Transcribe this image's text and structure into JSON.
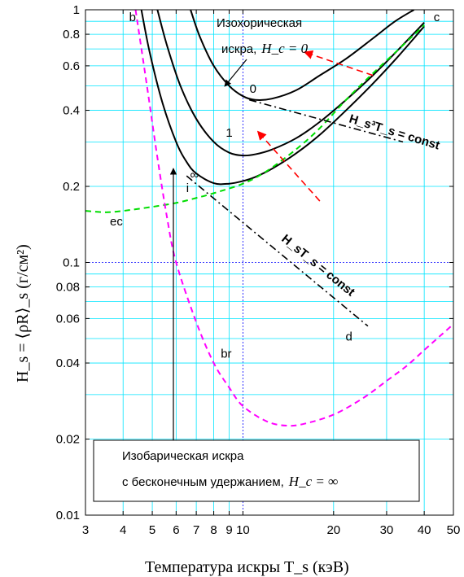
{
  "chart_data": {
    "type": "line",
    "title": "",
    "xlabel": "Температура искры T_s (кэВ)",
    "ylabel": "H_s = ⟨ρR⟩_s (г/см²)",
    "xscale": "log",
    "yscale": "log",
    "xlim": [
      3,
      50
    ],
    "ylim": [
      0.01,
      1
    ],
    "xticks": [
      {
        "v": 3,
        "label": "3"
      },
      {
        "v": 4,
        "label": "4"
      },
      {
        "v": 5,
        "label": "5"
      },
      {
        "v": 6,
        "label": "6"
      },
      {
        "v": 7,
        "label": "7"
      },
      {
        "v": 8,
        "label": "8"
      },
      {
        "v": 9,
        "label": "9"
      },
      {
        "v": 10,
        "label": "10"
      },
      {
        "v": 20,
        "label": "20"
      },
      {
        "v": 30,
        "label": "30"
      },
      {
        "v": 40,
        "label": "40"
      },
      {
        "v": 50,
        "label": "50"
      }
    ],
    "yticks": [
      {
        "v": 0.01,
        "label": "0.01"
      },
      {
        "v": 0.02,
        "label": "0.02"
      },
      {
        "v": 0.04,
        "label": "0.04"
      },
      {
        "v": 0.06,
        "label": "0.06"
      },
      {
        "v": 0.08,
        "label": "0.08"
      },
      {
        "v": 0.1,
        "label": "0.1"
      },
      {
        "v": 0.2,
        "label": "0.2"
      },
      {
        "v": 0.4,
        "label": "0.4"
      },
      {
        "v": 0.6,
        "label": "0.6"
      },
      {
        "v": 0.8,
        "label": "0.8"
      },
      {
        "v": 1,
        "label": "1"
      }
    ],
    "grid": true,
    "series": [
      {
        "name": "0",
        "color": "#000000",
        "style": "solid",
        "x": [
          6.7,
          7.2,
          8,
          9,
          10,
          11,
          12.5,
          15,
          18,
          22,
          27,
          32,
          37
        ],
        "y": [
          1.0,
          0.78,
          0.6,
          0.5,
          0.455,
          0.44,
          0.445,
          0.48,
          0.55,
          0.64,
          0.77,
          0.9,
          1.0
        ]
      },
      {
        "name": "1",
        "color": "#000000",
        "style": "solid",
        "x": [
          5.2,
          5.6,
          6.2,
          7,
          8,
          9,
          10,
          11,
          12.5,
          15,
          18,
          22,
          27,
          33,
          40
        ],
        "y": [
          1.0,
          0.72,
          0.5,
          0.37,
          0.3,
          0.272,
          0.265,
          0.268,
          0.28,
          0.31,
          0.36,
          0.44,
          0.55,
          0.7,
          0.89
        ]
      },
      {
        "name": "∞",
        "color": "#000000",
        "style": "solid",
        "x": [
          4.6,
          4.9,
          5.4,
          6,
          6.5,
          7,
          8,
          9,
          10,
          11,
          12.5,
          15,
          18,
          22,
          27,
          33,
          40
        ],
        "y": [
          1.0,
          0.68,
          0.43,
          0.3,
          0.25,
          0.225,
          0.206,
          0.205,
          0.21,
          0.218,
          0.235,
          0.27,
          0.32,
          0.4,
          0.51,
          0.66,
          0.86
        ]
      },
      {
        "name": "ec",
        "color": "#00dd00",
        "style": "dashed",
        "x": [
          3,
          3.5,
          4,
          5,
          6,
          7,
          8,
          10,
          12,
          15,
          18,
          22,
          27,
          33,
          40
        ],
        "y": [
          0.16,
          0.158,
          0.16,
          0.166,
          0.172,
          0.18,
          0.188,
          0.205,
          0.23,
          0.28,
          0.34,
          0.44,
          0.56,
          0.7,
          0.87
        ]
      },
      {
        "name": "br",
        "color": "#ff00ff",
        "style": "dashed",
        "x": [
          4.4,
          4.8,
          5.2,
          5.6,
          6,
          7,
          8,
          9,
          10,
          12,
          14,
          16,
          20,
          25,
          30,
          35,
          40,
          45,
          50
        ],
        "y": [
          1.0,
          0.5,
          0.26,
          0.15,
          0.1,
          0.058,
          0.04,
          0.032,
          0.027,
          0.0235,
          0.0226,
          0.023,
          0.025,
          0.029,
          0.034,
          0.039,
          0.045,
          0.051,
          0.057
        ]
      },
      {
        "name": "H_s³T_s = const",
        "color": "#000000",
        "style": "dashdot",
        "x": [
          10.5,
          34
        ],
        "y": [
          0.44,
          0.3
        ]
      },
      {
        "name": "H_sT_s = const",
        "color": "#000000",
        "style": "dashdot",
        "x": [
          6.5,
          26
        ],
        "y": [
          0.22,
          0.056
        ]
      }
    ],
    "point_labels": [
      {
        "text": "b",
        "x": 4.3,
        "y": 0.9
      },
      {
        "text": "c",
        "x": 44,
        "y": 0.9
      },
      {
        "text": "i",
        "x": 6.55,
        "y": 0.19
      },
      {
        "text": "d",
        "x": 22.5,
        "y": 0.049
      },
      {
        "text": "ec",
        "x": 3.8,
        "y": 0.14
      },
      {
        "text": "br",
        "x": 8.8,
        "y": 0.042
      },
      {
        "text": "0",
        "x": 10.8,
        "y": 0.47
      },
      {
        "text": "1",
        "x": 9.0,
        "y": 0.315
      },
      {
        "text": "∞",
        "x": 6.9,
        "y": 0.215
      }
    ],
    "annotations": {
      "isochoric_line1": "Изохорическая",
      "isochoric_line2": "искра,",
      "isochoric_eq": "H_c = 0",
      "isobaric_line1": "Изобарическая искра",
      "isobaric_line2": "с бесконечным удержанием,",
      "isobaric_eq": "H_c = ∞",
      "eq_cubic": "H_s³T_s = const",
      "eq_linear": "H_sT_s = const"
    },
    "red_arrows": [
      {
        "from": [
          27,
          0.55
        ],
        "to": [
          16,
          0.68
        ]
      },
      {
        "from": [
          18,
          0.175
        ],
        "to": [
          11.2,
          0.33
        ]
      }
    ]
  }
}
